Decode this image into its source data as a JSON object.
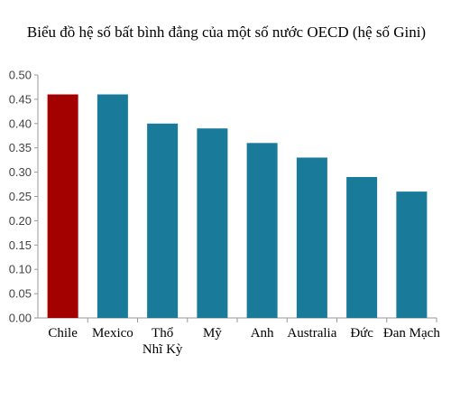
{
  "chart_data": {
    "type": "bar",
    "title": "Biểu đồ hệ số bất bình đẳng của một số nước OECD (hệ số Gini)",
    "categories": [
      "Chile",
      "Mexico",
      "Thổ Nhĩ Kỳ",
      "Mỹ",
      "Anh",
      "Australia",
      "Đức",
      "Đan Mạch"
    ],
    "category_labels": [
      [
        "Chile"
      ],
      [
        "Mexico"
      ],
      [
        "Thổ",
        "Nhĩ Kỳ"
      ],
      [
        "Mỹ"
      ],
      [
        "Anh"
      ],
      [
        "Australia"
      ],
      [
        "Đức"
      ],
      [
        "Đan Mạch"
      ]
    ],
    "values": [
      0.46,
      0.46,
      0.4,
      0.39,
      0.36,
      0.33,
      0.29,
      0.26
    ],
    "ylim": [
      0,
      0.5
    ],
    "yticks": [
      "0.00",
      "0.05",
      "0.10",
      "0.15",
      "0.20",
      "0.25",
      "0.30",
      "0.35",
      "0.40",
      "0.45",
      "0.50"
    ],
    "grid": false,
    "colors": {
      "default": "#1a7a9a",
      "highlight": "#a30000",
      "axis": "#999999"
    },
    "highlight_index": 0
  }
}
